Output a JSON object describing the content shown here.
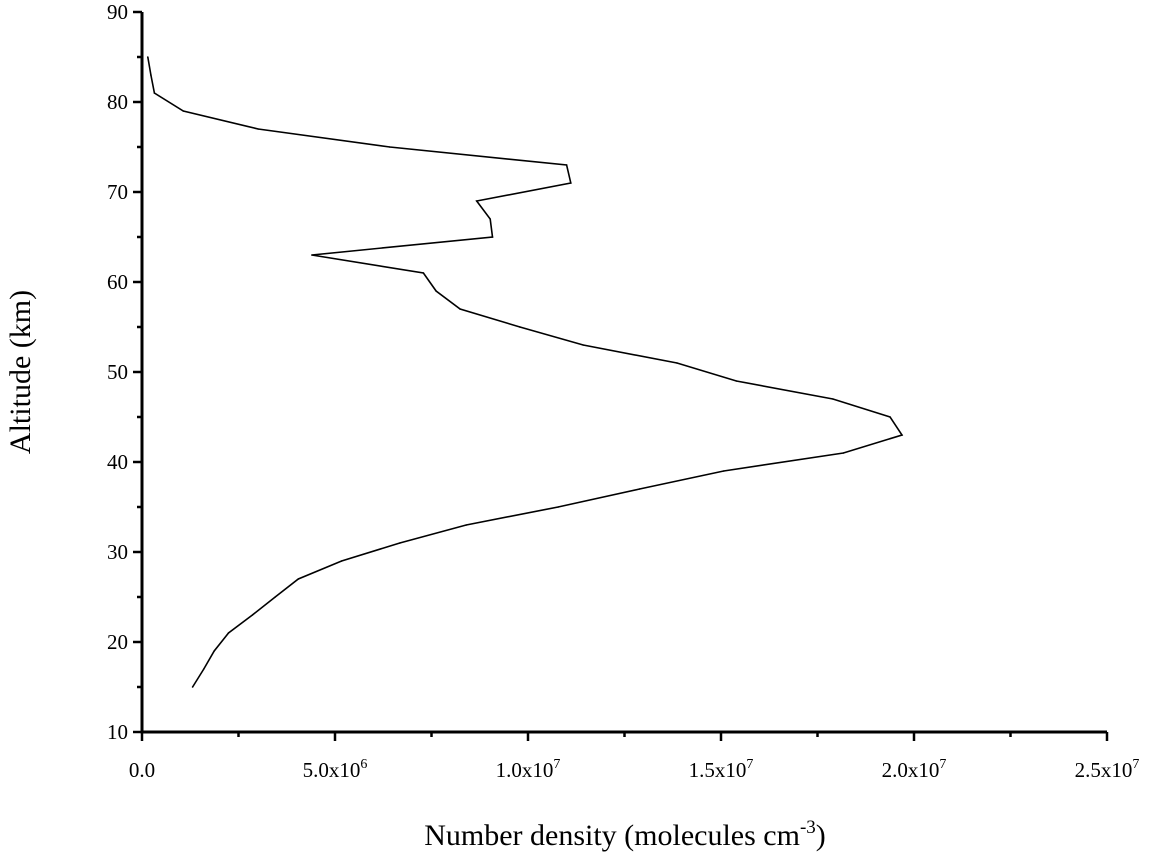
{
  "chart_data": {
    "type": "line",
    "title": "",
    "xlabel": "Number density (molecules cm",
    "xlabel_sup": "-3",
    "xlabel_end": ")",
    "ylabel": "Altitude (km)",
    "xlim": [
      0,
      25000000
    ],
    "ylim": [
      10,
      90
    ],
    "grid": false,
    "x_ticks": [
      0,
      5000000,
      10000000,
      15000000,
      20000000,
      25000000
    ],
    "x_tick_labels": [
      {
        "mant": "0.0",
        "exp": ""
      },
      {
        "mant": "5.0x10",
        "exp": "6"
      },
      {
        "mant": "1.0x10",
        "exp": "7"
      },
      {
        "mant": "1.5x10",
        "exp": "7"
      },
      {
        "mant": "2.0x10",
        "exp": "7"
      },
      {
        "mant": "2.5x10",
        "exp": "7"
      }
    ],
    "y_ticks": [
      10,
      20,
      30,
      40,
      50,
      60,
      70,
      80,
      90
    ],
    "y_tick_labels": [
      "10",
      "20",
      "30",
      "40",
      "50",
      "60",
      "70",
      "80",
      "90"
    ],
    "series": [
      {
        "name": "Number density",
        "color": "#000000",
        "points": [
          [
            1310000,
            15
          ],
          [
            1600000,
            17
          ],
          [
            1870000,
            19
          ],
          [
            2240000,
            21
          ],
          [
            2860000,
            23
          ],
          [
            3450000,
            25
          ],
          [
            4050000,
            27
          ],
          [
            5170000,
            29
          ],
          [
            6680000,
            31
          ],
          [
            8400000,
            33
          ],
          [
            10780000,
            35
          ],
          [
            12890000,
            37
          ],
          [
            15070000,
            39
          ],
          [
            18170000,
            41
          ],
          [
            19690000,
            43
          ],
          [
            19380000,
            45
          ],
          [
            17900000,
            47
          ],
          [
            15400000,
            49
          ],
          [
            13860000,
            51
          ],
          [
            11430000,
            53
          ],
          [
            9790000,
            55
          ],
          [
            8240000,
            57
          ],
          [
            7620000,
            59
          ],
          [
            7290000,
            61
          ],
          [
            4400000,
            63
          ],
          [
            9080000,
            65
          ],
          [
            9020000,
            67
          ],
          [
            8670000,
            69
          ],
          [
            11110000,
            71
          ],
          [
            11000000,
            73
          ],
          [
            6420000,
            75
          ],
          [
            3010000,
            77
          ],
          [
            1070000,
            79
          ],
          [
            320000,
            81
          ],
          [
            230000,
            83
          ],
          [
            150000,
            85
          ]
        ]
      }
    ]
  }
}
